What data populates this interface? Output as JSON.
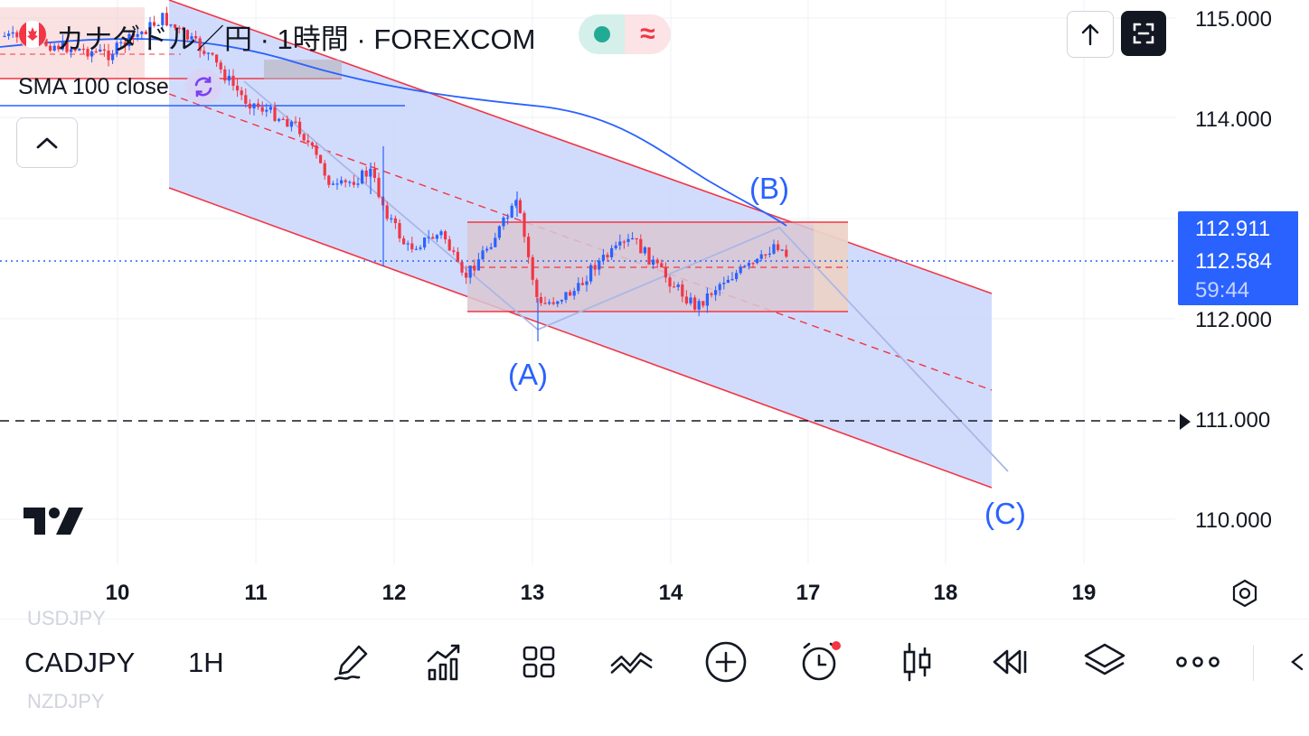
{
  "header": {
    "title": "カナダドル／円 · 1時間 · FOREXCOM",
    "market_status": "open",
    "status_symbol": "≈"
  },
  "indicator": {
    "label": "SMA 100 close"
  },
  "price_scale": {
    "ticks": [
      "115.000",
      "114.000",
      "112.000",
      "111.000",
      "110.000"
    ],
    "badge": {
      "top_price": "112.911",
      "current_price": "112.584",
      "countdown": "59:44"
    }
  },
  "time_scale": {
    "ticks": [
      "10",
      "11",
      "12",
      "13",
      "14",
      "17",
      "18",
      "19"
    ]
  },
  "wave_labels": {
    "a": "(A)",
    "b": "(B)",
    "c": "(C)"
  },
  "toolbar": {
    "symbol": "CADJPY",
    "interval": "1H",
    "ghost_prev": "USDJPY",
    "ghost_next": "NZDJPY",
    "icons": [
      "pen-icon",
      "indicators-icon",
      "layouts-icon",
      "compare-icon",
      "add-icon",
      "alert-icon",
      "candle-type-icon",
      "replay-icon",
      "layers-icon",
      "more-icon",
      "collapse-arrow-icon"
    ]
  },
  "colors": {
    "accent_blue": "#2962ff",
    "channel_fill": "#c9d6fb",
    "channel_line": "#f23645",
    "bull": "#2962ff",
    "bear": "#f23645",
    "range_box": "#d9c7d2"
  }
}
